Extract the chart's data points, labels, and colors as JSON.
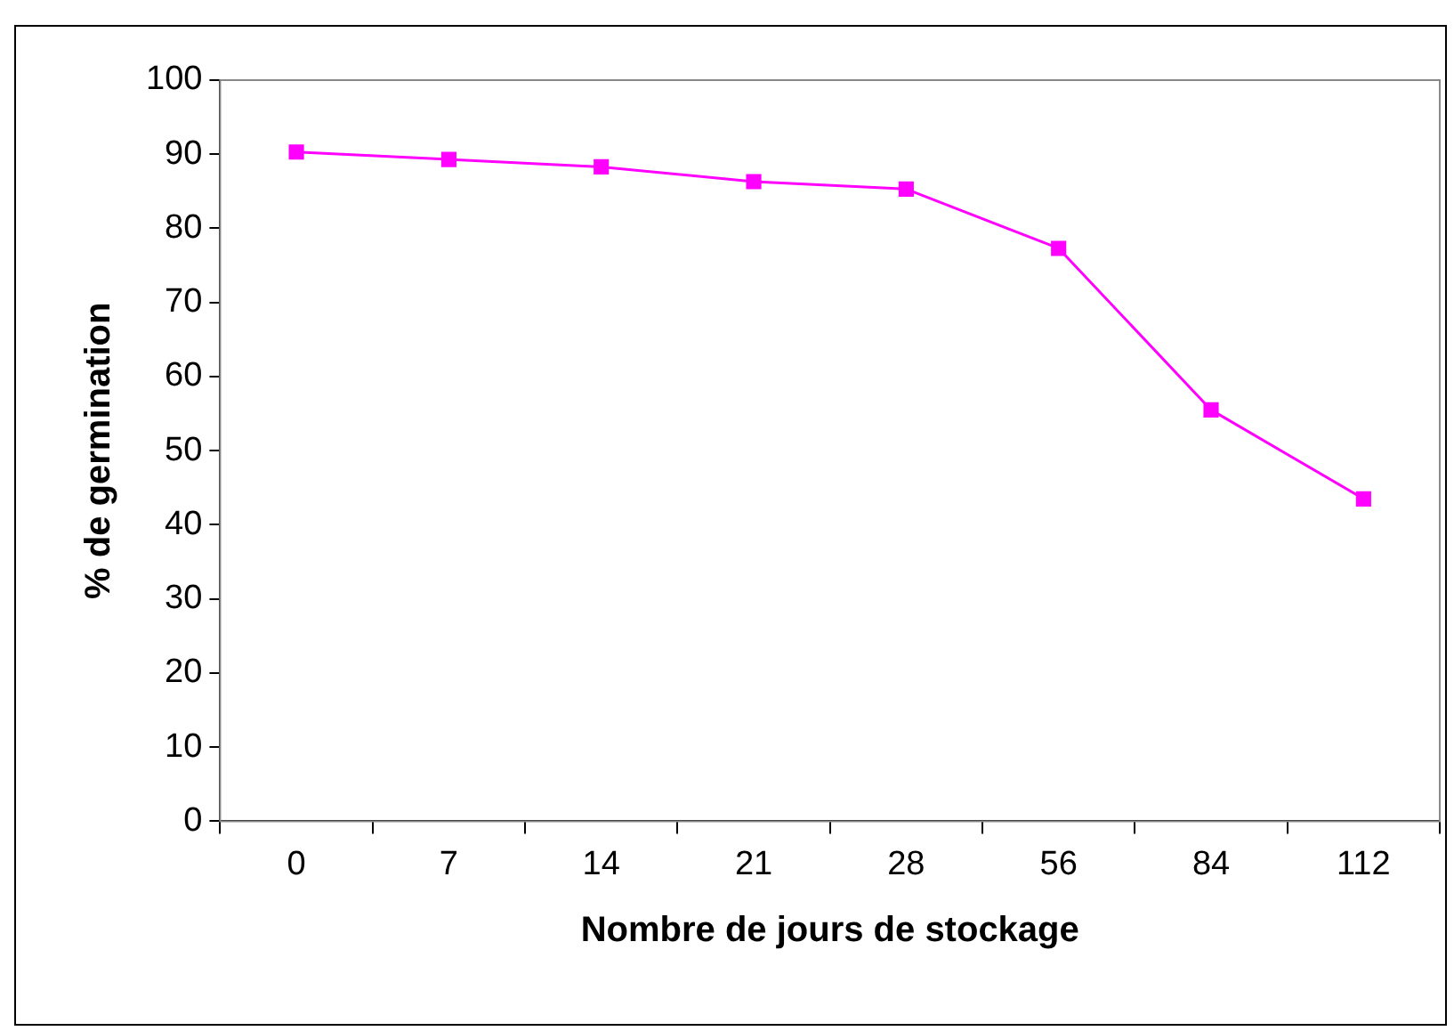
{
  "chart_data": {
    "type": "line",
    "xlabel": "Nombre de jours de stockage",
    "ylabel": "% de germination",
    "categories": [
      "0",
      "7",
      "14",
      "21",
      "28",
      "56",
      "84",
      "112"
    ],
    "series": [
      {
        "color": "#ff00ff",
        "values": [
          90.3,
          89.3,
          88.3,
          86.3,
          85.3,
          77.3,
          55.5,
          43.5
        ]
      }
    ],
    "ylim": [
      0,
      100
    ],
    "yticks": [
      0,
      10,
      20,
      30,
      40,
      50,
      60,
      70,
      80,
      90,
      100
    ],
    "grid": false,
    "legend": false,
    "marker": "square",
    "line_style": "solid"
  }
}
